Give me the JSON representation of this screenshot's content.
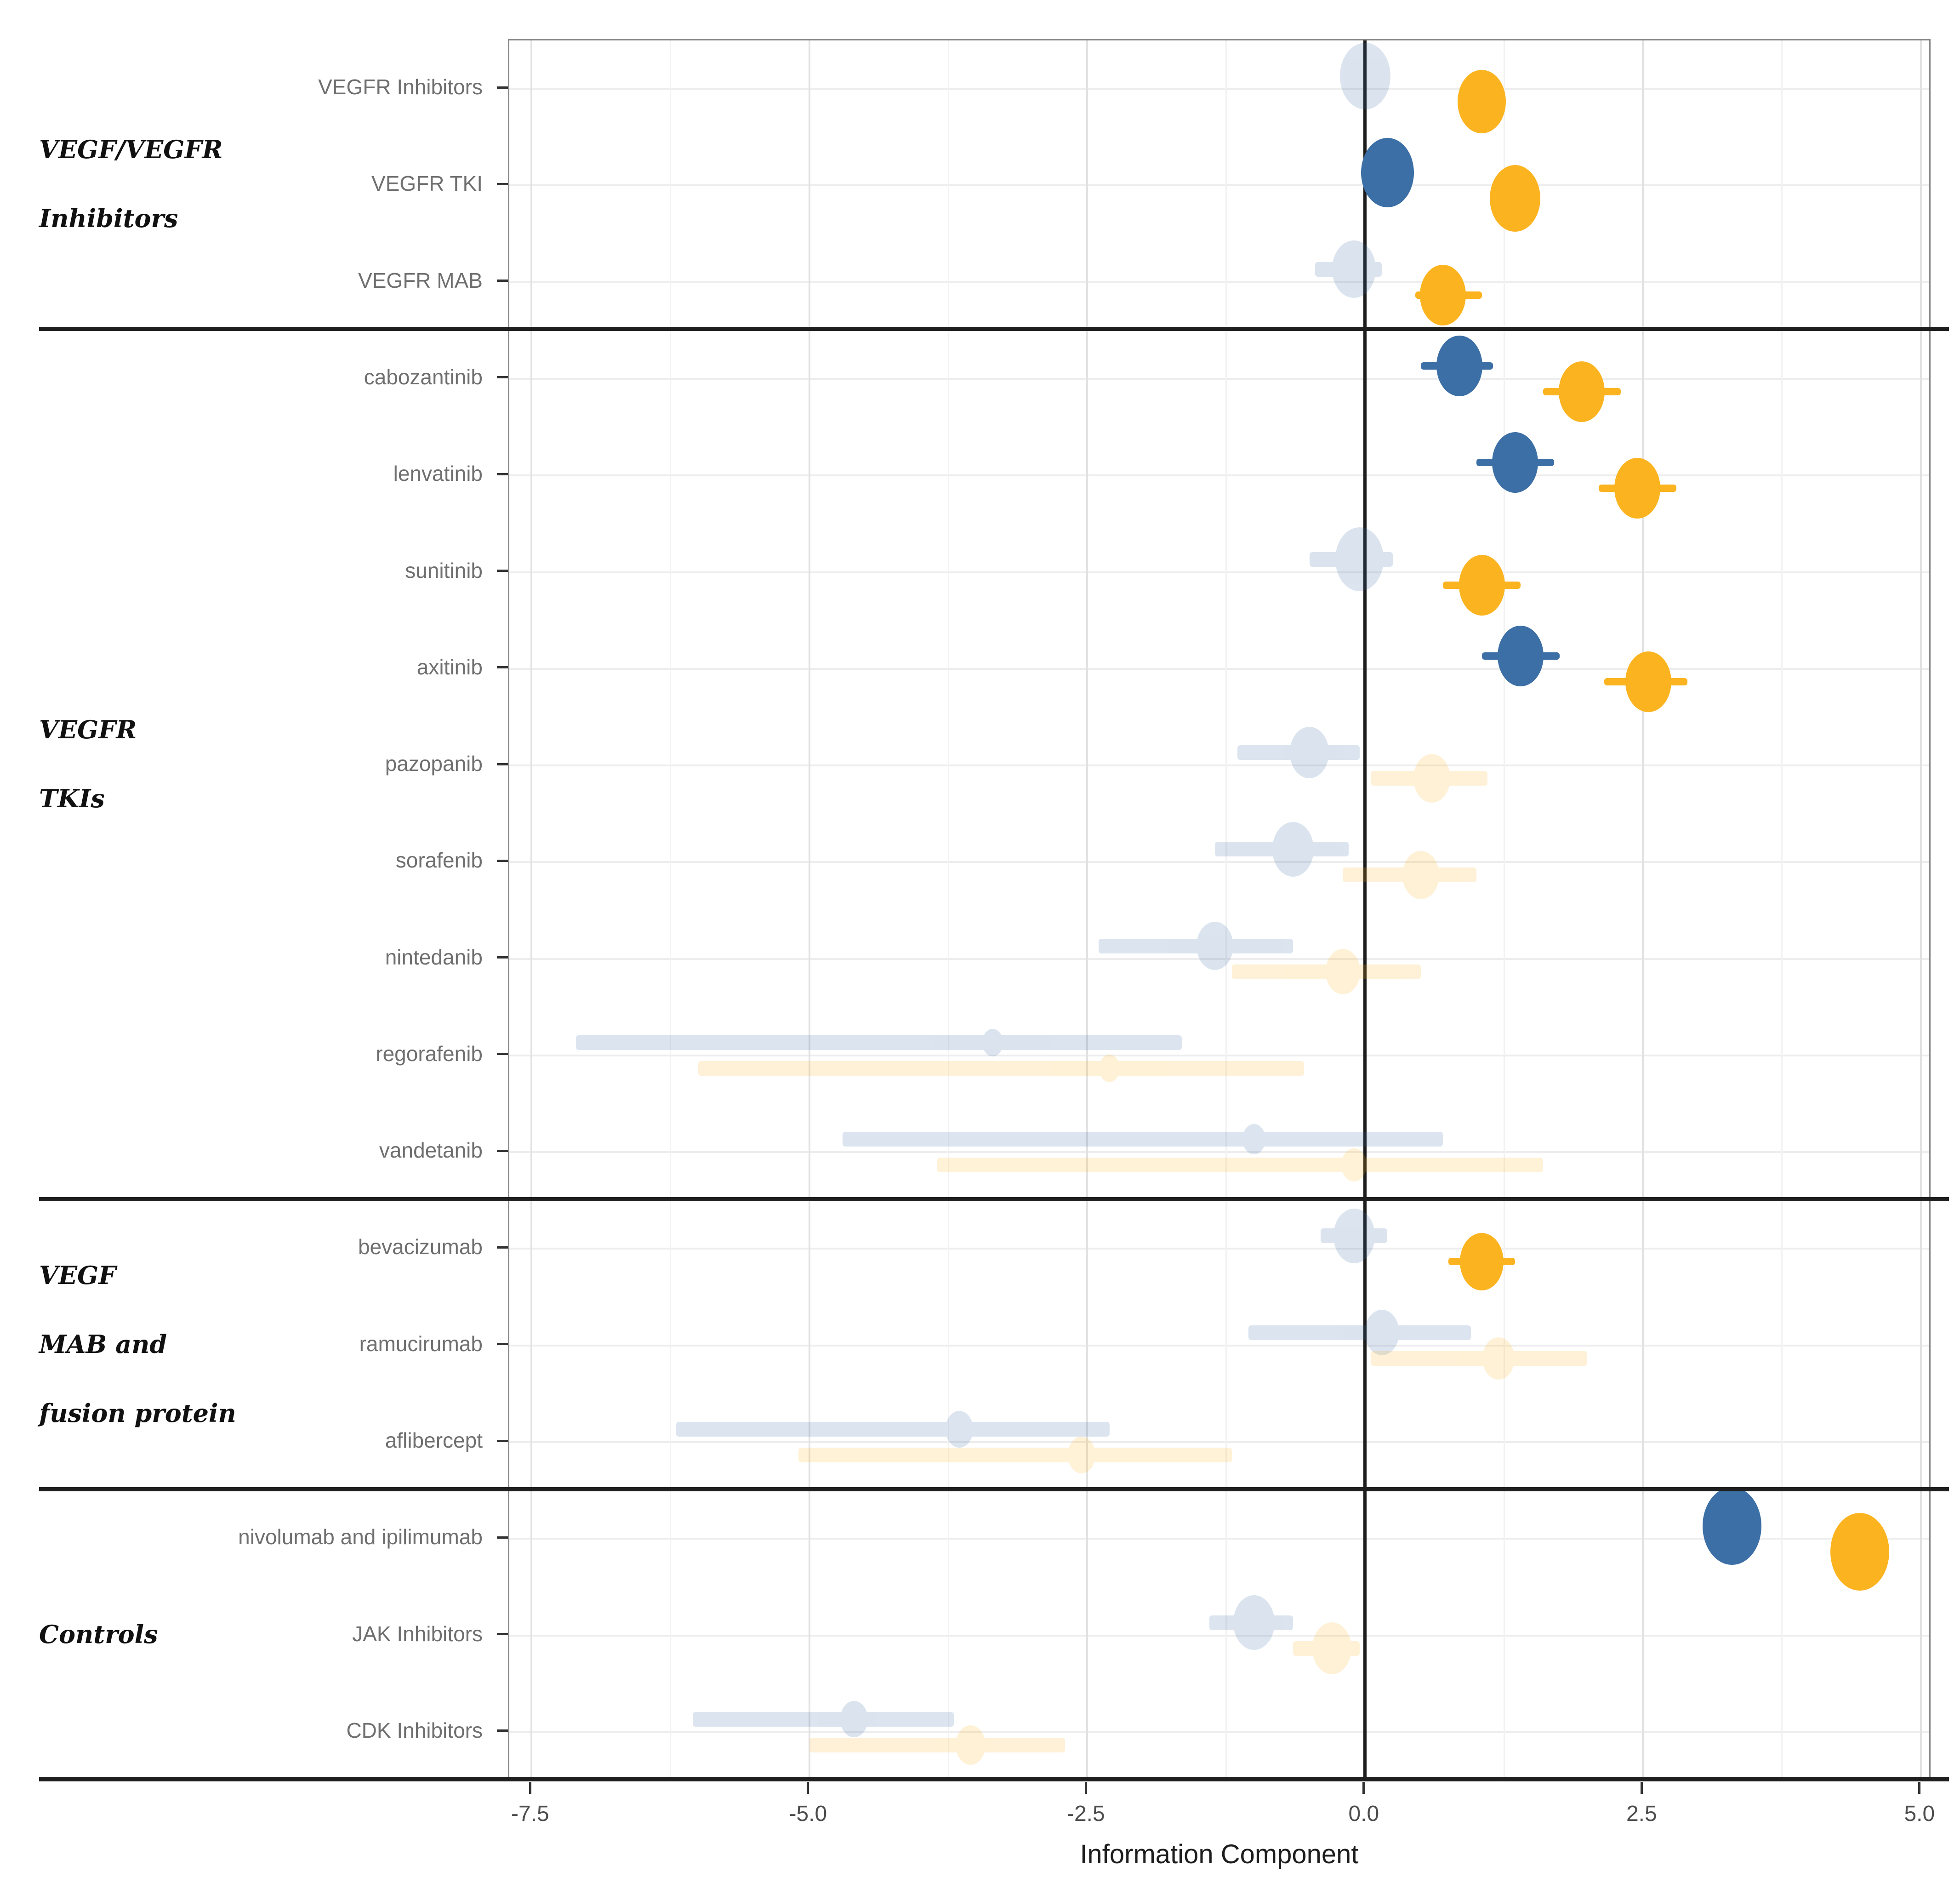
{
  "figure": {
    "background": "#ffffff",
    "kind": "forest-dot-plot"
  },
  "chart_data": {
    "type": "scatter",
    "title": "",
    "xlabel": "Information Component",
    "ylabel": "",
    "xlim": [
      -7.7,
      5.1
    ],
    "x_ticks": [
      -7.5,
      -5.0,
      -2.5,
      0.0,
      2.5,
      5.0
    ],
    "x_tick_labels": [
      "-7.5",
      "-5.0",
      "-2.5",
      "0.0",
      "2.5",
      "5.0"
    ],
    "x_minor_ticks": [
      -6.25,
      -3.75,
      -1.25,
      1.25,
      3.75
    ],
    "grid": true,
    "legend_position": "none",
    "zero_reference_line": 0.0,
    "series_colors": {
      "blue": "#3C6FA5",
      "yellow": "#FBB420"
    },
    "faded_opacity": 0.18,
    "groups": [
      {
        "label_lines": [
          "VEGF/VEGFR",
          "Inhibitors"
        ],
        "rows": [
          {
            "label": "VEGFR Inhibitors",
            "points": [
              {
                "series": "blue",
                "value": 0.0,
                "ci": [
                  -0.15,
                  0.2
                ],
                "significant": false,
                "size": 110
              },
              {
                "series": "yellow",
                "value": 1.05,
                "ci": [
                  0.9,
                  1.25
                ],
                "significant": true,
                "size": 105
              }
            ]
          },
          {
            "label": "VEGFR TKI",
            "points": [
              {
                "series": "blue",
                "value": 0.2,
                "ci": [
                  0.05,
                  0.4
                ],
                "significant": true,
                "size": 115
              },
              {
                "series": "yellow",
                "value": 1.35,
                "ci": [
                  1.15,
                  1.5
                ],
                "significant": true,
                "size": 110
              }
            ]
          },
          {
            "label": "VEGFR MAB",
            "points": [
              {
                "series": "blue",
                "value": -0.1,
                "ci": [
                  -0.45,
                  0.15
                ],
                "significant": false,
                "size": 95
              },
              {
                "series": "yellow",
                "value": 0.7,
                "ci": [
                  0.45,
                  1.05
                ],
                "significant": true,
                "size": 100
              }
            ]
          }
        ]
      },
      {
        "label_lines": [
          "VEGFR",
          "TKIs"
        ],
        "rows": [
          {
            "label": "cabozantinib",
            "points": [
              {
                "series": "blue",
                "value": 0.85,
                "ci": [
                  0.5,
                  1.15
                ],
                "significant": true,
                "size": 100
              },
              {
                "series": "yellow",
                "value": 1.95,
                "ci": [
                  1.6,
                  2.3
                ],
                "significant": true,
                "size": 100
              }
            ]
          },
          {
            "label": "lenvatinib",
            "points": [
              {
                "series": "blue",
                "value": 1.35,
                "ci": [
                  1.0,
                  1.7
                ],
                "significant": true,
                "size": 100
              },
              {
                "series": "yellow",
                "value": 2.45,
                "ci": [
                  2.1,
                  2.8
                ],
                "significant": true,
                "size": 100
              }
            ]
          },
          {
            "label": "sunitinib",
            "points": [
              {
                "series": "blue",
                "value": -0.05,
                "ci": [
                  -0.5,
                  0.25
                ],
                "significant": false,
                "size": 105
              },
              {
                "series": "yellow",
                "value": 1.05,
                "ci": [
                  0.7,
                  1.4
                ],
                "significant": true,
                "size": 100
              }
            ]
          },
          {
            "label": "axitinib",
            "points": [
              {
                "series": "blue",
                "value": 1.4,
                "ci": [
                  1.05,
                  1.75
                ],
                "significant": true,
                "size": 100
              },
              {
                "series": "yellow",
                "value": 2.55,
                "ci": [
                  2.15,
                  2.9
                ],
                "significant": true,
                "size": 100
              }
            ]
          },
          {
            "label": "pazopanib",
            "points": [
              {
                "series": "blue",
                "value": -0.5,
                "ci": [
                  -1.15,
                  -0.05
                ],
                "significant": false,
                "size": 85
              },
              {
                "series": "yellow",
                "value": 0.6,
                "ci": [
                  0.05,
                  1.1
                ],
                "significant": false,
                "size": 80
              }
            ]
          },
          {
            "label": "sorafenib",
            "points": [
              {
                "series": "blue",
                "value": -0.65,
                "ci": [
                  -1.35,
                  -0.15
                ],
                "significant": false,
                "size": 90
              },
              {
                "series": "yellow",
                "value": 0.5,
                "ci": [
                  -0.2,
                  1.0
                ],
                "significant": false,
                "size": 80
              }
            ]
          },
          {
            "label": "nintedanib",
            "points": [
              {
                "series": "blue",
                "value": -1.35,
                "ci": [
                  -2.4,
                  -0.65
                ],
                "significant": false,
                "size": 80
              },
              {
                "series": "yellow",
                "value": -0.2,
                "ci": [
                  -1.2,
                  0.5
                ],
                "significant": false,
                "size": 75
              }
            ]
          },
          {
            "label": "regorafenib",
            "points": [
              {
                "series": "blue",
                "value": -3.35,
                "ci": [
                  -7.1,
                  -1.65
                ],
                "significant": false,
                "size": 45
              },
              {
                "series": "yellow",
                "value": -2.3,
                "ci": [
                  -6.0,
                  -0.55
                ],
                "significant": false,
                "size": 45
              }
            ]
          },
          {
            "label": "vandetanib",
            "points": [
              {
                "series": "blue",
                "value": -1.0,
                "ci": [
                  -4.7,
                  0.7
                ],
                "significant": false,
                "size": 50
              },
              {
                "series": "yellow",
                "value": -0.1,
                "ci": [
                  -3.85,
                  1.6
                ],
                "significant": false,
                "size": 55
              }
            ]
          }
        ]
      },
      {
        "label_lines": [
          "VEGF",
          "MAB and",
          "fusion protein"
        ],
        "rows": [
          {
            "label": "bevacizumab",
            "points": [
              {
                "series": "blue",
                "value": -0.1,
                "ci": [
                  -0.4,
                  0.2
                ],
                "significant": false,
                "size": 90
              },
              {
                "series": "yellow",
                "value": 1.05,
                "ci": [
                  0.75,
                  1.35
                ],
                "significant": true,
                "size": 95
              }
            ]
          },
          {
            "label": "ramucirumab",
            "points": [
              {
                "series": "blue",
                "value": 0.15,
                "ci": [
                  -1.05,
                  0.95
                ],
                "significant": false,
                "size": 75
              },
              {
                "series": "yellow",
                "value": 1.2,
                "ci": [
                  0.05,
                  2.0
                ],
                "significant": false,
                "size": 70
              }
            ]
          },
          {
            "label": "aflibercept",
            "points": [
              {
                "series": "blue",
                "value": -3.65,
                "ci": [
                  -6.2,
                  -2.3
                ],
                "significant": false,
                "size": 60
              },
              {
                "series": "yellow",
                "value": -2.55,
                "ci": [
                  -5.1,
                  -1.2
                ],
                "significant": false,
                "size": 60
              }
            ]
          }
        ]
      },
      {
        "label_lines": [
          "Controls"
        ],
        "rows": [
          {
            "label": "nivolumab and ipilimumab",
            "points": [
              {
                "series": "blue",
                "value": 3.3,
                "ci": [
                  3.15,
                  3.45
                ],
                "significant": true,
                "size": 128
              },
              {
                "series": "yellow",
                "value": 4.45,
                "ci": [
                  4.3,
                  4.6
                ],
                "significant": true,
                "size": 128
              }
            ]
          },
          {
            "label": "JAK Inhibitors",
            "points": [
              {
                "series": "blue",
                "value": -1.0,
                "ci": [
                  -1.4,
                  -0.65
                ],
                "significant": false,
                "size": 90
              },
              {
                "series": "yellow",
                "value": -0.3,
                "ci": [
                  -0.65,
                  -0.05
                ],
                "significant": false,
                "size": 85
              }
            ]
          },
          {
            "label": "CDK Inhibitors",
            "points": [
              {
                "series": "blue",
                "value": -4.6,
                "ci": [
                  -6.05,
                  -3.7
                ],
                "significant": false,
                "size": 60
              },
              {
                "series": "yellow",
                "value": -3.55,
                "ci": [
                  -5.0,
                  -2.7
                ],
                "significant": false,
                "size": 65
              }
            ]
          }
        ]
      }
    ]
  }
}
